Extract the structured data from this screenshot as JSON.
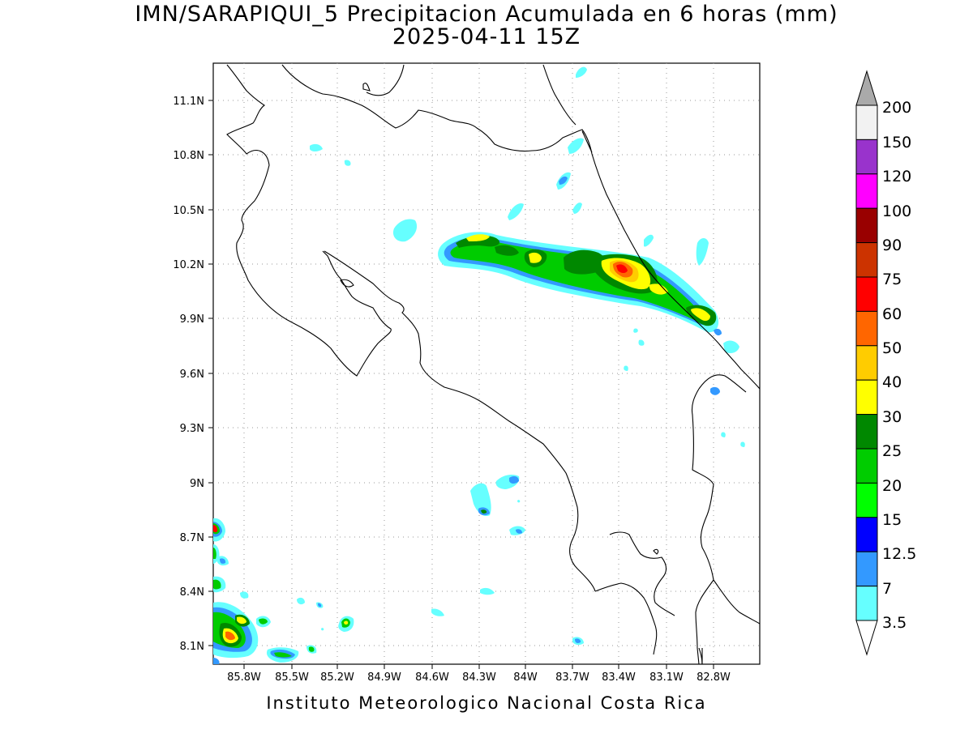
{
  "title": {
    "line1": "IMN/SARAPIQUI_5 Precipitacion Acumulada en 6 horas (mm)",
    "line2": "2025-04-11 15Z"
  },
  "footer": "Instituto Meteorologico Nacional Costa Rica",
  "map": {
    "lon_ticks": [
      "85.8W",
      "85.5W",
      "85.2W",
      "84.9W",
      "84.6W",
      "84.3W",
      "84W",
      "83.7W",
      "83.4W",
      "83.1W",
      "82.8W"
    ],
    "lat_ticks": [
      "11.1N",
      "10.8N",
      "10.5N",
      "10.2N",
      "9.9N",
      "9.6N",
      "9.3N",
      "9N",
      "8.7N",
      "8.4N",
      "8.1N"
    ],
    "grid": "dotted"
  },
  "colorbar": {
    "labels": [
      "200",
      "150",
      "120",
      "100",
      "90",
      "75",
      "60",
      "50",
      "40",
      "30",
      "25",
      "20",
      "15",
      "12.5",
      "7",
      "3.5"
    ],
    "colors": [
      "#f2f2f2",
      "#9933cc",
      "#ff00ff",
      "#990000",
      "#cc3300",
      "#ff0000",
      "#ff6600",
      "#ffcc00",
      "#ffff00",
      "#008800",
      "#00cc00",
      "#00ff00",
      "#0000ff",
      "#3399ff",
      "#66ffff"
    ],
    "over_color": "#aaaaaa",
    "under_color": "#ffffff"
  }
}
